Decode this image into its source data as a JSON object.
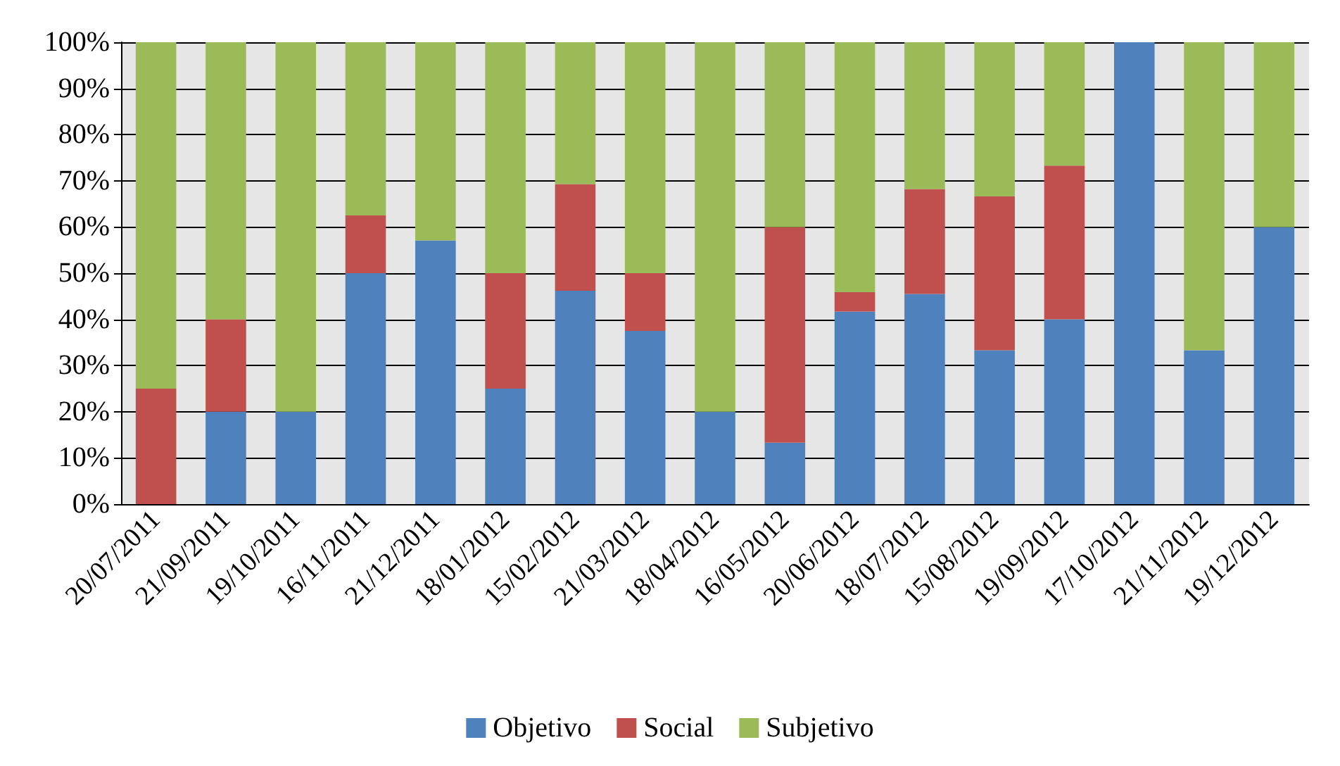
{
  "chart_data": {
    "type": "bar",
    "stacked": true,
    "categories": [
      "20/07/2011",
      "21/09/2011",
      "19/10/2011",
      "16/11/2011",
      "21/12/2011",
      "18/01/2012",
      "15/02/2012",
      "21/03/2012",
      "18/04/2012",
      "16/05/2012",
      "20/06/2012",
      "18/07/2012",
      "15/08/2012",
      "19/09/2012",
      "17/10/2012",
      "21/11/2012",
      "19/12/2012"
    ],
    "series": [
      {
        "name": "Objetivo",
        "color": "#4f81bd",
        "values": [
          0,
          20,
          20,
          50,
          57.1,
          25,
          46.2,
          37.5,
          20,
          13.3,
          41.7,
          45.5,
          33.3,
          40,
          100,
          33.3,
          60
        ]
      },
      {
        "name": "Social",
        "color": "#c0504d",
        "values": [
          25,
          20,
          0,
          12.5,
          0,
          25,
          23.1,
          12.5,
          0,
          46.7,
          4.2,
          22.7,
          33.3,
          33.3,
          0,
          0,
          0
        ]
      },
      {
        "name": "Subjetivo",
        "color": "#9bbb59",
        "values": [
          75,
          60,
          80,
          37.5,
          42.9,
          50,
          30.7,
          50,
          80,
          40,
          54.1,
          31.8,
          33.4,
          26.7,
          0,
          66.7,
          40
        ]
      }
    ],
    "ylim": [
      0,
      100
    ],
    "yticks": [
      {
        "value": 0,
        "label": "0%"
      },
      {
        "value": 10,
        "label": "10%"
      },
      {
        "value": 20,
        "label": "20%"
      },
      {
        "value": 30,
        "label": "30%"
      },
      {
        "value": 40,
        "label": "40%"
      },
      {
        "value": 50,
        "label": "50%"
      },
      {
        "value": 60,
        "label": "60%"
      },
      {
        "value": 70,
        "label": "70%"
      },
      {
        "value": 80,
        "label": "80%"
      },
      {
        "value": 90,
        "label": "90%"
      },
      {
        "value": 100,
        "label": "100%"
      }
    ],
    "grid": "y",
    "legend": "bottom"
  }
}
